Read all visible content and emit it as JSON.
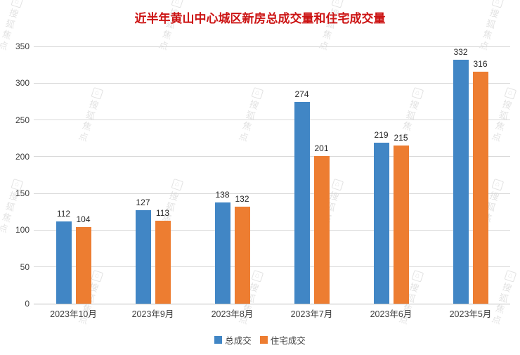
{
  "title": "近半年黄山中心城区新房总成交量和住宅成交量",
  "watermark": {
    "text": "搜狐焦点",
    "logo_glyph": "⌂"
  },
  "colors": {
    "title": "#cc1414",
    "series_total": "#4186c5",
    "series_residential": "#ed7d31",
    "gridline": "#d9d9d9",
    "axis_text": "#404040"
  },
  "chart_data": {
    "type": "bar",
    "title": "近半年黄山中心城区新房总成交量和住宅成交量",
    "categories": [
      "2023年10月",
      "2023年9月",
      "2023年8月",
      "2023年7月",
      "2023年6月",
      "2023年5月"
    ],
    "series": [
      {
        "name": "总成交",
        "color": "#4186c5",
        "values": [
          112,
          127,
          138,
          274,
          219,
          332
        ]
      },
      {
        "name": "住宅成交",
        "color": "#ed7d31",
        "values": [
          104,
          113,
          132,
          201,
          215,
          316
        ]
      }
    ],
    "xlabel": "",
    "ylabel": "",
    "ylim": [
      0,
      350
    ],
    "ytick_step": 50,
    "grid": true,
    "data_labels": true,
    "legend_position": "bottom"
  }
}
